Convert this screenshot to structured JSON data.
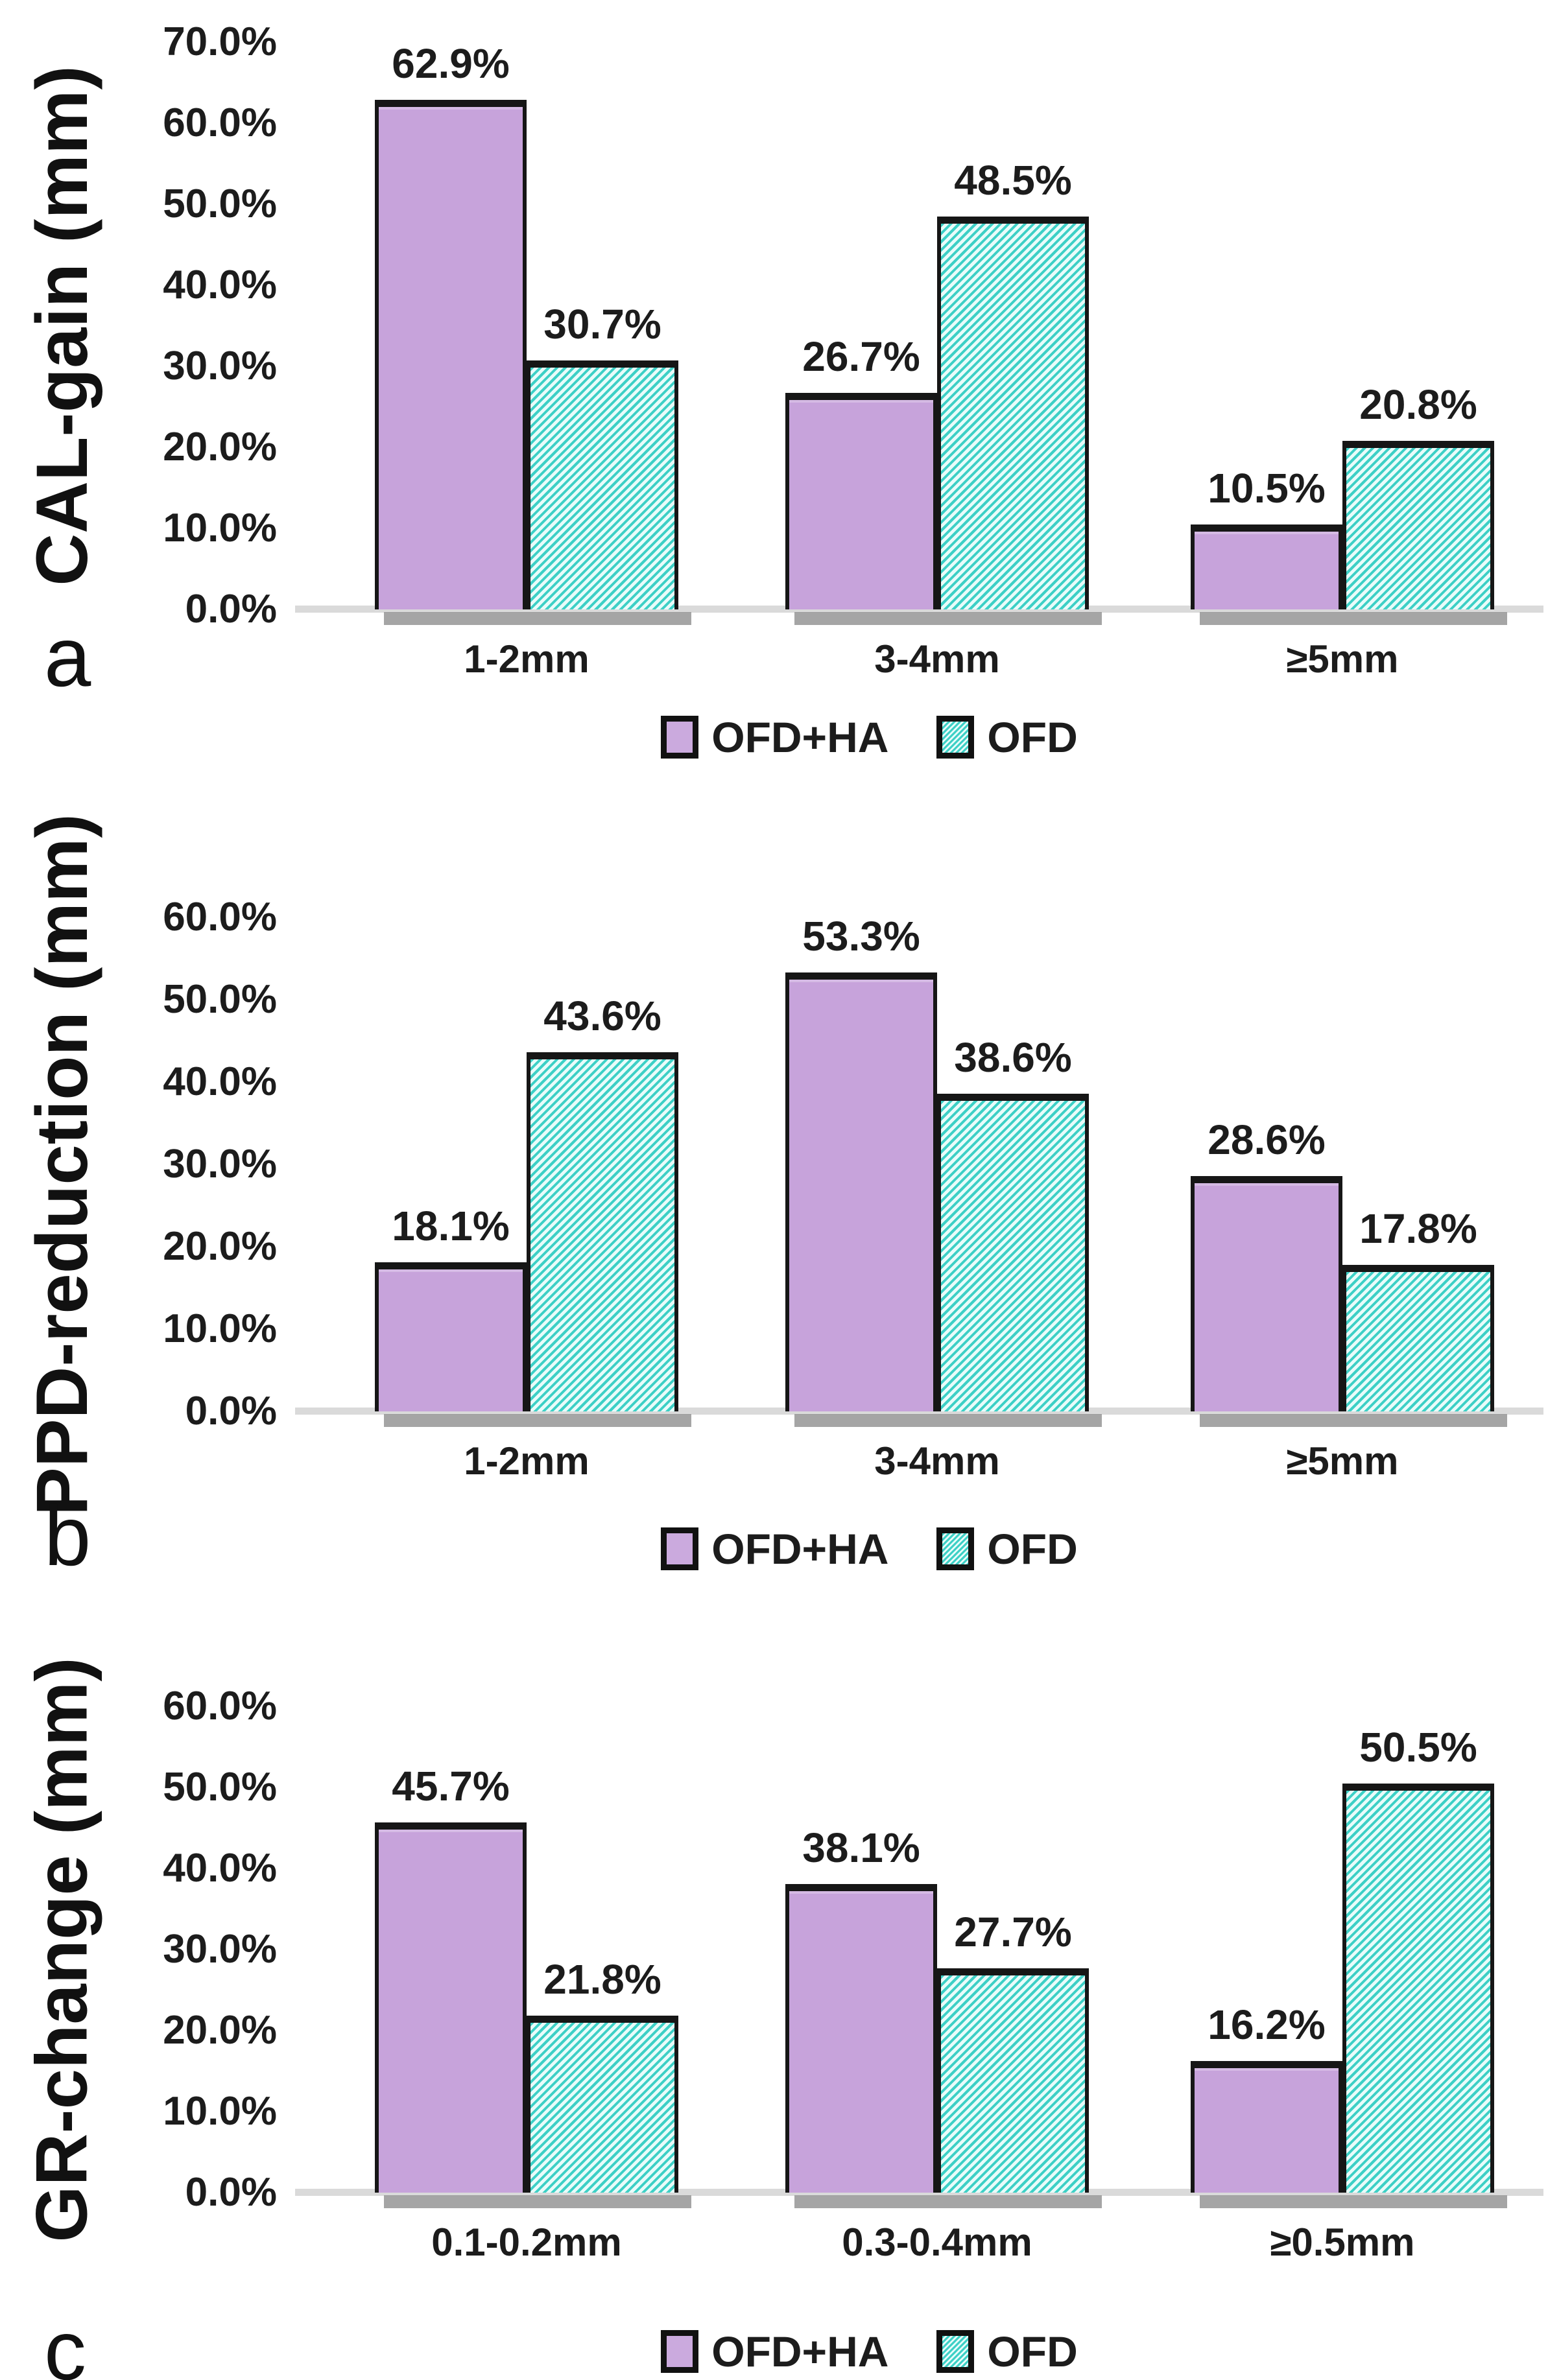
{
  "figure_background": "#ffffff",
  "colors": {
    "ofd_ha_fill": "#c7a3db",
    "ofd_stripe": "#3dd0c6",
    "ofd_stripe_bg": "#e9fcfa",
    "bar_border": "#161616",
    "text": "#1c1c1c",
    "axis_line": "#dadada",
    "bar_shadow": "#8f8f8f"
  },
  "legend_labels": [
    "OFD+HA",
    "OFD"
  ],
  "chart_data": [
    {
      "type": "bar",
      "panel_letter": "a",
      "ylabel": "CAL-gain (mm)",
      "categories": [
        "1-2mm",
        "3-4mm",
        "≥5mm"
      ],
      "series": [
        {
          "name": "OFD+HA",
          "values": [
            62.9,
            26.7,
            10.5
          ],
          "labels": [
            "62.9%",
            "26.7%",
            "10.5%"
          ]
        },
        {
          "name": "OFD",
          "values": [
            30.7,
            48.5,
            20.8
          ],
          "labels": [
            "30.7%",
            "48.5%",
            "20.8%"
          ]
        }
      ],
      "ylim": [
        0,
        70
      ],
      "ytick_step": 10,
      "ytick_labels": [
        "70.0%",
        "60.0%",
        "50.0%",
        "40.0%",
        "30.0%",
        "20.0%",
        "10.0%",
        "0.0%"
      ],
      "grid": false,
      "legend": [
        "OFD+HA",
        "OFD"
      ],
      "legend_position": "bottom"
    },
    {
      "type": "bar",
      "panel_letter": "b",
      "ylabel": "PPD-reduction (mm)",
      "categories": [
        "1-2mm",
        "3-4mm",
        "≥5mm"
      ],
      "series": [
        {
          "name": "OFD+HA",
          "values": [
            18.1,
            53.3,
            28.6
          ],
          "labels": [
            "18.1%",
            "53.3%",
            "28.6%"
          ]
        },
        {
          "name": "OFD",
          "values": [
            43.6,
            38.6,
            17.8
          ],
          "labels": [
            "43.6%",
            "38.6%",
            "17.8%"
          ]
        }
      ],
      "ylim": [
        0,
        60
      ],
      "ytick_step": 10,
      "ytick_labels": [
        "60.0%",
        "50.0%",
        "40.0%",
        "30.0%",
        "20.0%",
        "10.0%",
        "0.0%"
      ],
      "grid": false,
      "legend": [
        "OFD+HA",
        "OFD"
      ],
      "legend_position": "bottom"
    },
    {
      "type": "bar",
      "panel_letter": "c",
      "ylabel": "GR-change (mm)",
      "categories": [
        "0.1-0.2mm",
        "0.3-0.4mm",
        "≥0.5mm"
      ],
      "series": [
        {
          "name": "OFD+HA",
          "values": [
            45.7,
            38.1,
            16.2
          ],
          "labels": [
            "45.7%",
            "38.1%",
            "16.2%"
          ]
        },
        {
          "name": "OFD",
          "values": [
            21.8,
            27.7,
            50.5
          ],
          "labels": [
            "21.8%",
            "27.7%",
            "50.5%"
          ]
        }
      ],
      "ylim": [
        0,
        60
      ],
      "ytick_step": 10,
      "ytick_labels": [
        "60.0%",
        "50.0%",
        "40.0%",
        "30.0%",
        "20.0%",
        "10.0%",
        "0.0%"
      ],
      "grid": false,
      "legend": [
        "OFD+HA",
        "OFD"
      ],
      "legend_position": "bottom"
    }
  ]
}
